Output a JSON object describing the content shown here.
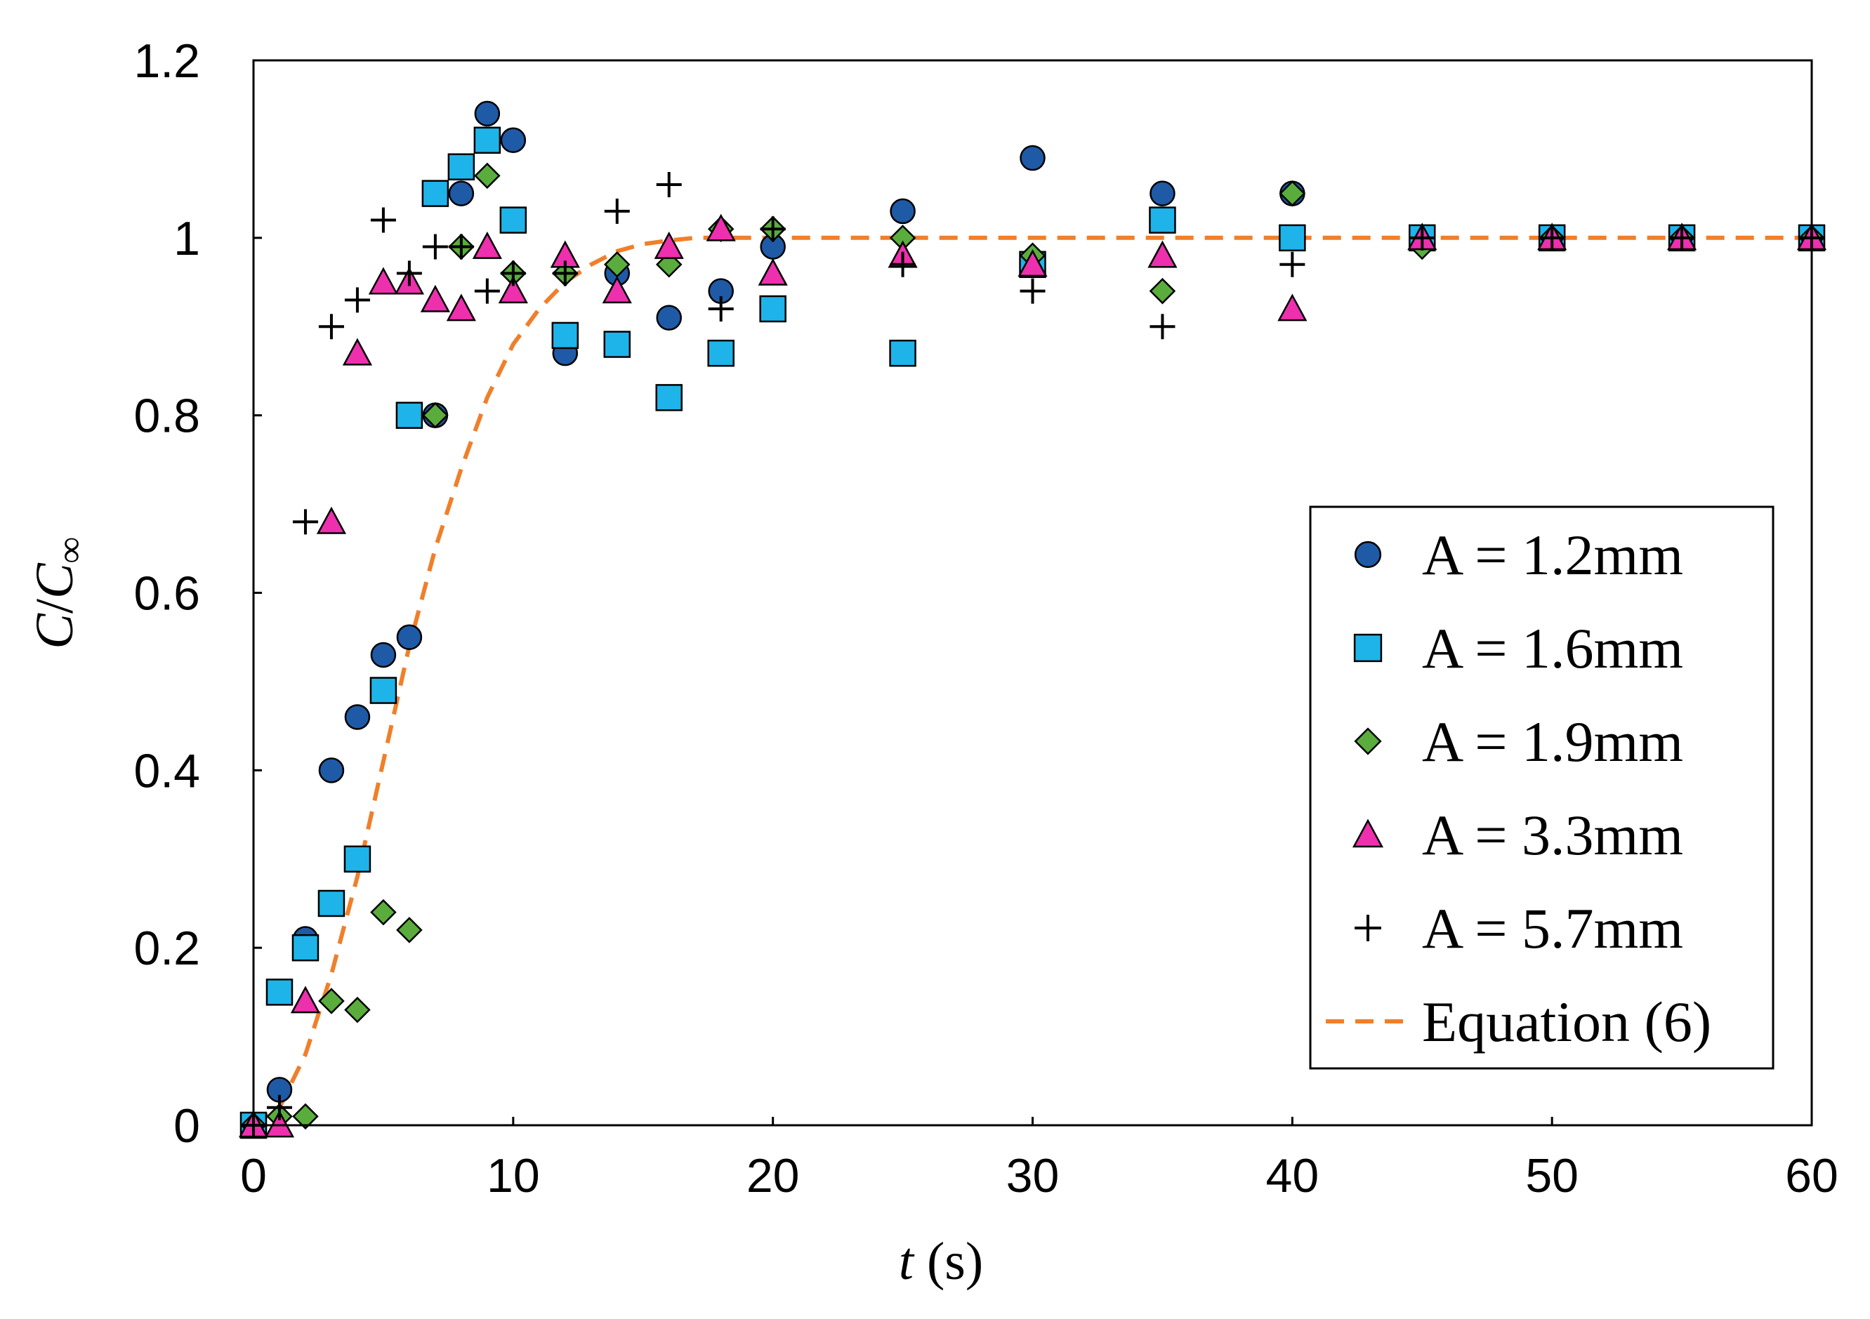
{
  "chart_data": {
    "type": "scatter",
    "title": "",
    "xlabel": {
      "var": "t",
      "unit": " (s)"
    },
    "ylabel": {
      "var": "C",
      "sep": "/",
      "sub_base": "C",
      "sub": "∞"
    },
    "xlim": [
      0,
      60
    ],
    "ylim": [
      0,
      1.2
    ],
    "xticks": [
      0,
      10,
      20,
      30,
      40,
      50,
      60
    ],
    "yticks": [
      0,
      0.2,
      0.4,
      0.6,
      0.8,
      1,
      1.2
    ],
    "xtick_labels": [
      "0",
      "10",
      "20",
      "30",
      "40",
      "50",
      "60"
    ],
    "ytick_labels": [
      "0",
      "0.2",
      "0.4",
      "0.6",
      "0.8",
      "1",
      "1.2"
    ],
    "grid": false,
    "legend_position": "right-center",
    "series": [
      {
        "name": "A = 1.2mm",
        "marker": "circle",
        "color": "#1f5aa6",
        "x": [
          0,
          1,
          2,
          3,
          4,
          5,
          6,
          7,
          8,
          9,
          10,
          12,
          14,
          16,
          18,
          20,
          25,
          30,
          35,
          40,
          45,
          50,
          55,
          60
        ],
        "y": [
          0,
          0.04,
          0.21,
          0.4,
          0.46,
          0.53,
          0.55,
          0.8,
          1.05,
          1.14,
          1.11,
          0.87,
          0.96,
          0.91,
          0.94,
          0.99,
          1.03,
          1.09,
          1.05,
          1.05,
          1.0,
          1.0,
          1.0,
          1.0
        ]
      },
      {
        "name": "A = 1.6mm",
        "marker": "square",
        "color": "#1eb4e9",
        "x": [
          0,
          1,
          2,
          3,
          4,
          5,
          6,
          7,
          8,
          9,
          10,
          12,
          14,
          16,
          18,
          20,
          25,
          30,
          35,
          40,
          45,
          50,
          55,
          60
        ],
        "y": [
          0,
          0.15,
          0.2,
          0.25,
          0.3,
          0.49,
          0.8,
          1.05,
          1.08,
          1.11,
          1.02,
          0.89,
          0.88,
          0.82,
          0.87,
          0.92,
          0.87,
          0.97,
          1.02,
          1.0,
          1.0,
          1.0,
          1.0,
          1.0
        ]
      },
      {
        "name": "A = 1.9mm",
        "marker": "diamond",
        "color": "#5aad3c",
        "x": [
          0,
          1,
          2,
          3,
          4,
          5,
          6,
          7,
          8,
          9,
          10,
          12,
          14,
          16,
          18,
          20,
          25,
          30,
          35,
          40,
          45,
          50,
          55,
          60
        ],
        "y": [
          0,
          0.01,
          0.01,
          0.14,
          0.13,
          0.24,
          0.22,
          0.8,
          0.99,
          1.07,
          0.96,
          0.96,
          0.97,
          0.97,
          1.01,
          1.01,
          1.0,
          0.98,
          0.94,
          1.05,
          0.99,
          1.0,
          1.0,
          1.0
        ]
      },
      {
        "name": "A = 3.3mm",
        "marker": "triangle",
        "color": "#ee2fae",
        "x": [
          0,
          1,
          2,
          3,
          4,
          5,
          6,
          7,
          8,
          9,
          10,
          12,
          14,
          16,
          18,
          20,
          25,
          30,
          35,
          40,
          45,
          50,
          55,
          60
        ],
        "y": [
          0,
          0.0,
          0.14,
          0.68,
          0.87,
          0.95,
          0.95,
          0.93,
          0.92,
          0.99,
          0.94,
          0.98,
          0.94,
          0.99,
          1.01,
          0.96,
          0.98,
          0.97,
          0.98,
          0.92,
          1.0,
          1.0,
          1.0,
          1.0
        ]
      },
      {
        "name": "A = 5.7mm",
        "marker": "plus",
        "color": "#000000",
        "x": [
          0,
          1,
          2,
          3,
          4,
          5,
          6,
          7,
          8,
          9,
          10,
          12,
          14,
          16,
          18,
          20,
          25,
          30,
          35,
          40,
          45,
          50,
          55,
          60
        ],
        "y": [
          0,
          0.02,
          0.68,
          0.9,
          0.93,
          1.02,
          0.96,
          0.99,
          0.99,
          0.94,
          0.96,
          0.96,
          1.03,
          1.06,
          0.92,
          1.01,
          0.97,
          0.94,
          0.9,
          0.97,
          1.0,
          1.0,
          1.0,
          1.0
        ]
      },
      {
        "name": "Equation (6)",
        "marker": "dashed-line",
        "color": "#f07f2a",
        "x": [
          0,
          1,
          2,
          3,
          4,
          5,
          6,
          7,
          8,
          9,
          10,
          11,
          12,
          13,
          14,
          15,
          16,
          17,
          18,
          20,
          25,
          30,
          35,
          40,
          45,
          50,
          55,
          60
        ],
        "y": [
          0,
          0.02,
          0.08,
          0.17,
          0.28,
          0.41,
          0.54,
          0.65,
          0.74,
          0.82,
          0.88,
          0.92,
          0.95,
          0.97,
          0.985,
          0.993,
          0.997,
          1.0,
          1.0,
          1.0,
          1.0,
          1.0,
          1.0,
          1.0,
          1.0,
          1.0,
          1.0,
          1.0
        ]
      }
    ]
  }
}
